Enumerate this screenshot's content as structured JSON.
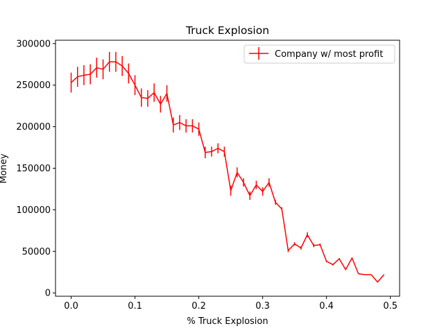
{
  "chart_data": {
    "type": "line",
    "title": "Truck Explosion",
    "xlabel": "% Truck Explosion",
    "ylabel": "Money",
    "xlim": [
      -0.0245,
      0.5145
    ],
    "ylim": [
      -4000,
      304000
    ],
    "xticks": [
      0.0,
      0.1,
      0.2,
      0.3,
      0.4,
      0.5
    ],
    "xtick_labels": [
      "0.0",
      "0.1",
      "0.2",
      "0.3",
      "0.4",
      "0.5"
    ],
    "yticks": [
      0,
      50000,
      100000,
      150000,
      200000,
      250000,
      300000
    ],
    "ytick_labels": [
      "0",
      "50000",
      "100000",
      "150000",
      "200000",
      "250000",
      "300000"
    ],
    "grid": false,
    "legend_position": "top-right",
    "series": [
      {
        "name": "Company w/ most profit",
        "color": "#ff0000",
        "x": [
          0.0,
          0.01,
          0.02,
          0.03,
          0.04,
          0.05,
          0.06,
          0.07,
          0.08,
          0.09,
          0.1,
          0.11,
          0.12,
          0.13,
          0.14,
          0.15,
          0.16,
          0.17,
          0.18,
          0.19,
          0.2,
          0.21,
          0.22,
          0.23,
          0.24,
          0.25,
          0.26,
          0.27,
          0.28,
          0.29,
          0.3,
          0.31,
          0.32,
          0.33,
          0.34,
          0.35,
          0.36,
          0.37,
          0.38,
          0.39,
          0.4,
          0.41,
          0.42,
          0.43,
          0.44,
          0.45,
          0.46,
          0.47,
          0.48,
          0.49
        ],
        "y": [
          253000,
          260000,
          262000,
          263000,
          271000,
          269000,
          278000,
          278000,
          273000,
          264000,
          250000,
          235000,
          234000,
          241000,
          227000,
          240000,
          202000,
          205000,
          201000,
          201000,
          197000,
          169000,
          170000,
          174000,
          170000,
          123000,
          145000,
          133000,
          117000,
          130000,
          122000,
          133000,
          109000,
          101000,
          51000,
          59000,
          54000,
          70000,
          57000,
          58000,
          38000,
          34000,
          41000,
          28000,
          42000,
          23000,
          22000,
          22000,
          13000,
          22000
        ],
        "yerr": [
          12000,
          12000,
          12000,
          12000,
          12000,
          12000,
          12000,
          12000,
          12000,
          12000,
          12000,
          11000,
          10000,
          11000,
          10000,
          10000,
          9000,
          9000,
          8000,
          8000,
          8000,
          7000,
          6000,
          6000,
          6000,
          6000,
          6000,
          5000,
          5000,
          5000,
          5000,
          5000,
          3000,
          2000,
          2000,
          2000,
          2000,
          3000,
          2000,
          1500,
          1000,
          1000,
          1000,
          500,
          500,
          300,
          300,
          300,
          200,
          200
        ]
      }
    ]
  }
}
